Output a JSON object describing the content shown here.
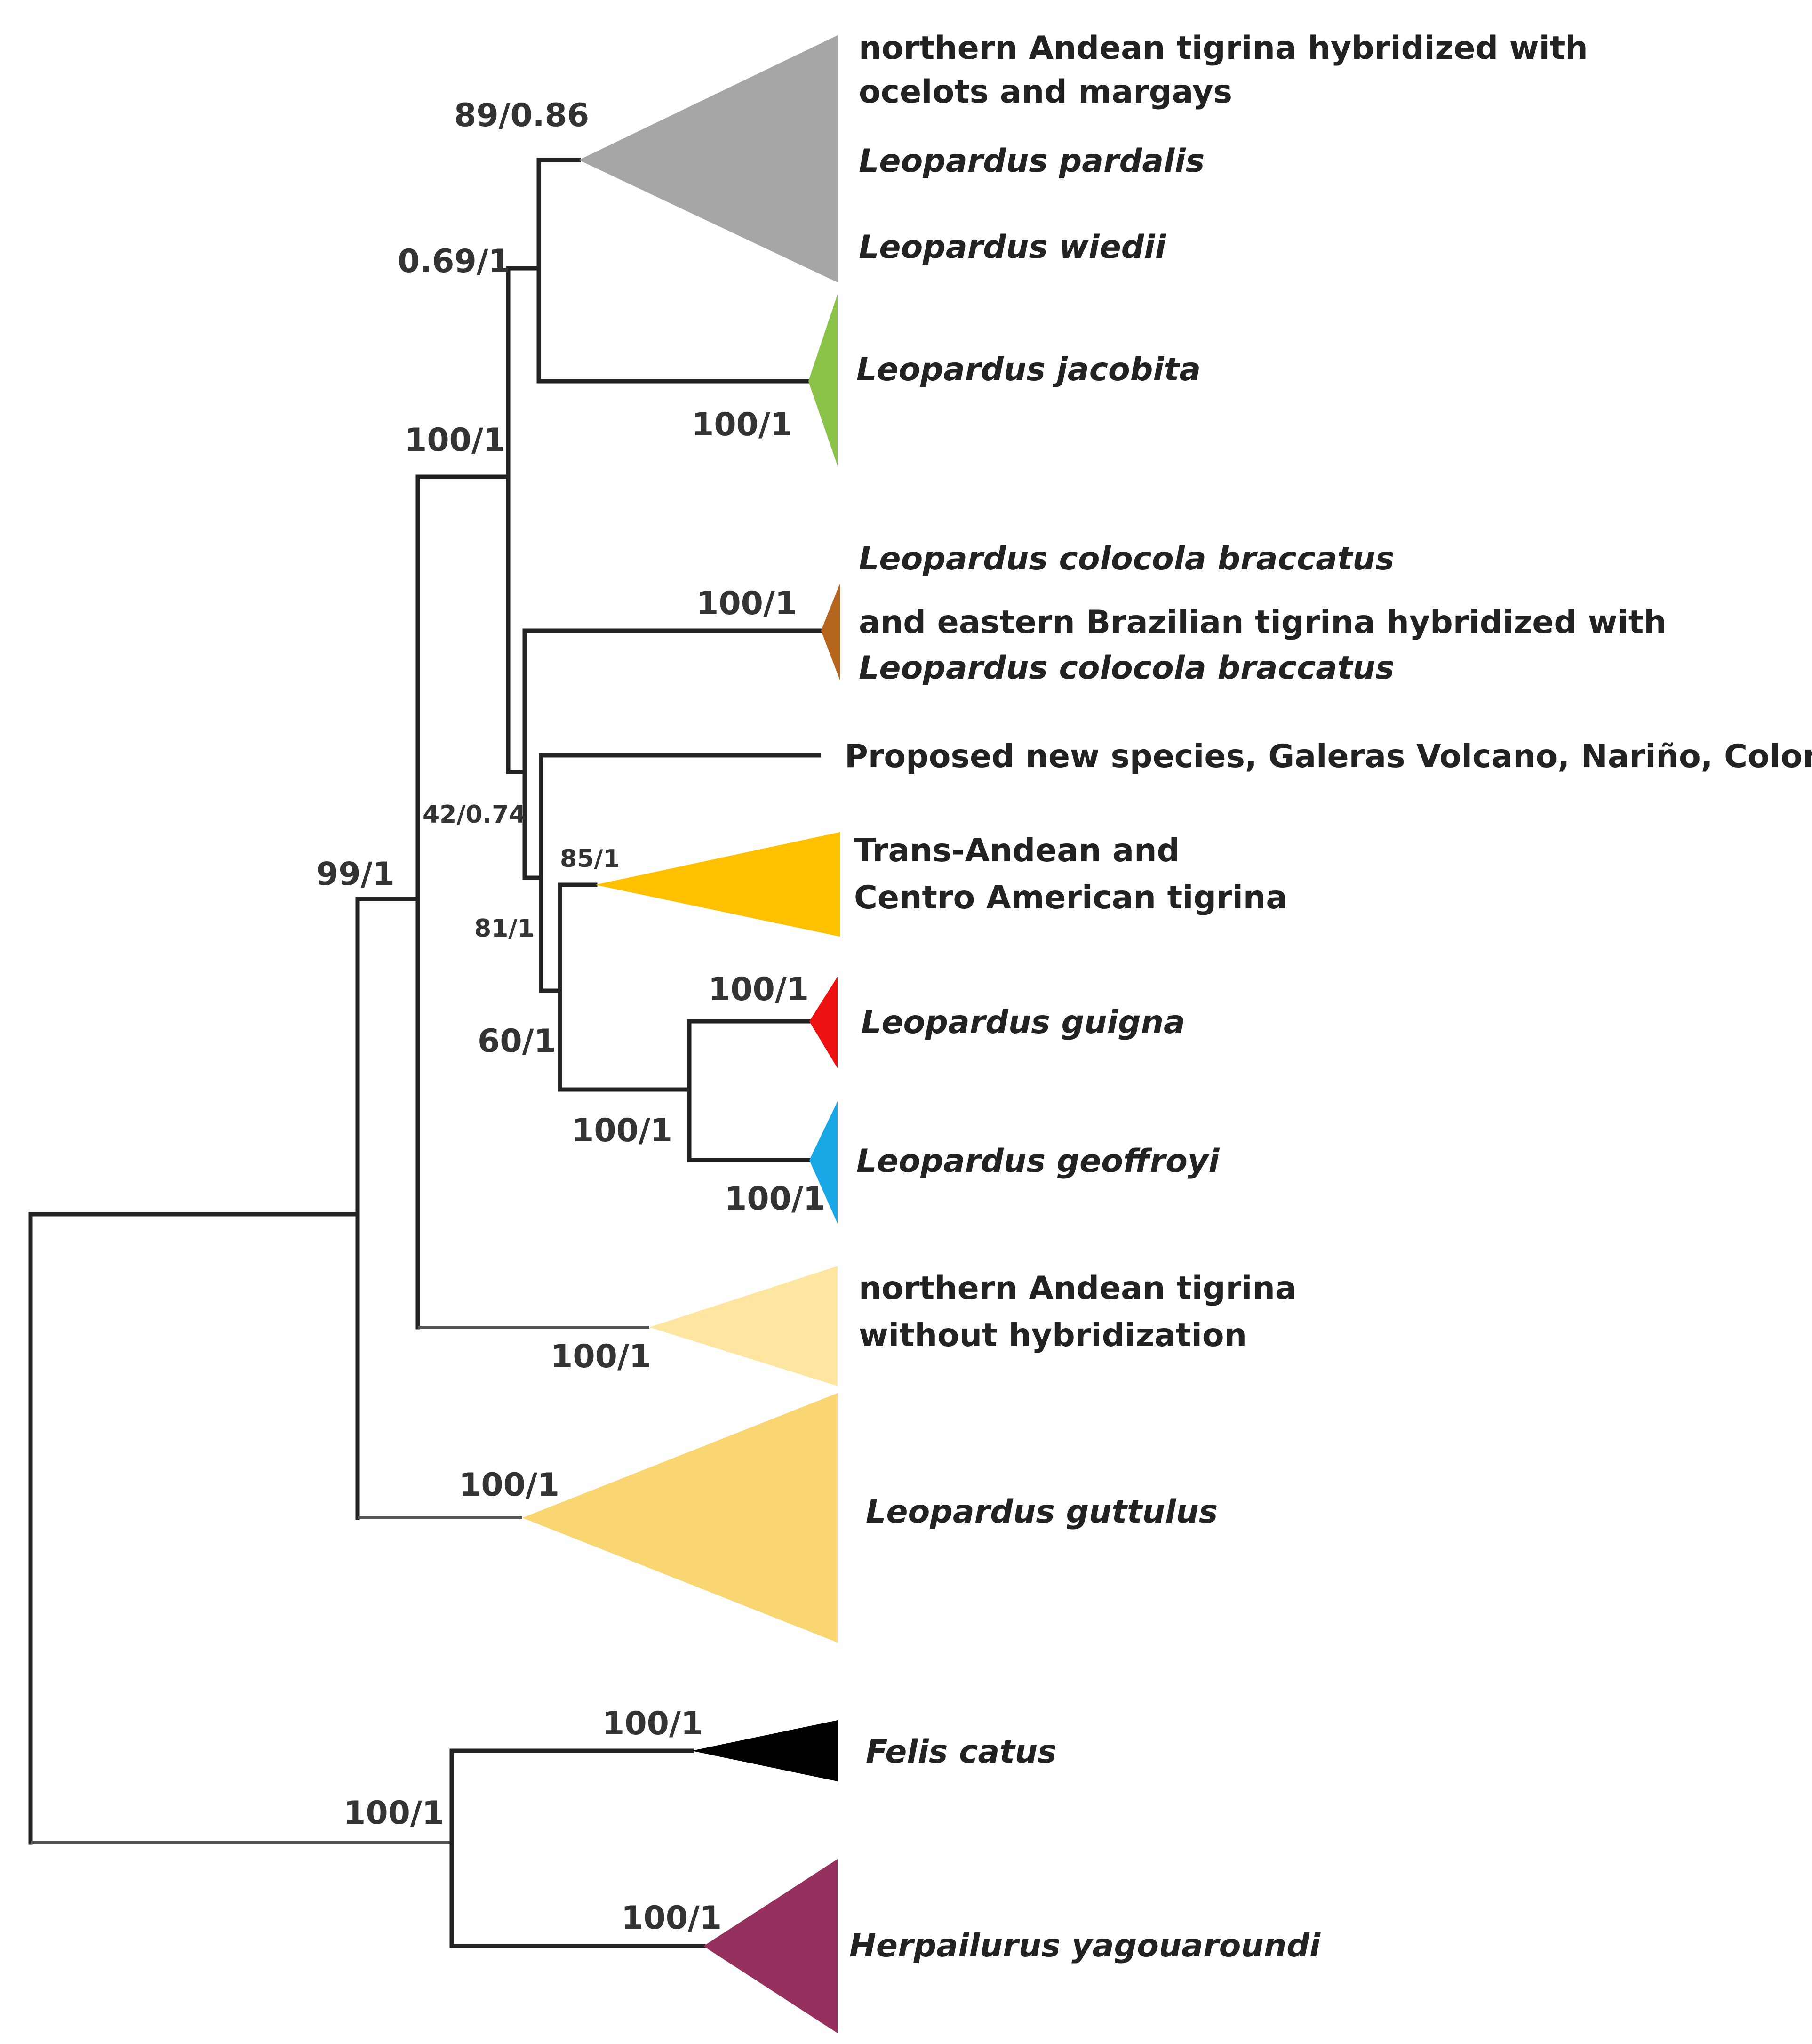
{
  "colors": {
    "pardalis_wiedii": "#a6a6a6",
    "jacobita": "#8bc34a",
    "colocola": "#b5651d",
    "trans_andean": "#ffc000",
    "guigna": "#ee1111",
    "geoffroyi": "#1aa7e6",
    "northern_andean": "#ffe6a0",
    "guttulus": "#fad673",
    "felis": "#000000",
    "herpailurus": "#96305e",
    "branch": "#222222"
  },
  "clades": {
    "pardalis_wiedii": {
      "label_line1": "northern Andean tigrina hybridized with",
      "label_line2": "ocelots and margays",
      "label_line3": "Leopardus pardalis",
      "label_line4": "Leopardus wiedii",
      "support": "89/0.86"
    },
    "jacobita": {
      "label": "Leopardus jacobita",
      "support": "100/1"
    },
    "colocola": {
      "label_line1": "Leopardus colocola braccatus",
      "label_line2": "and eastern Brazilian tigrina hybridized with",
      "label_line3": "Leopardus colocola braccatus",
      "support": "100/1"
    },
    "new_species": {
      "label": "Proposed new species, Galeras Volcano, Nariño, Colombia"
    },
    "trans_andean": {
      "label_line1": "Trans-Andean and",
      "label_line2": "Centro American tigrina",
      "support": "85/1"
    },
    "guigna": {
      "label": "Leopardus guigna",
      "support": "100/1"
    },
    "geoffroyi": {
      "label": "Leopardus geoffroyi",
      "support": "100/1"
    },
    "northern_andean": {
      "label_line1": "northern Andean tigrina",
      "label_line2": "without hybridization",
      "support": "100/1"
    },
    "guttulus": {
      "label": "Leopardus guttulus",
      "support": "100/1"
    },
    "felis": {
      "label": "Felis catus",
      "support": "100/1"
    },
    "herpailurus": {
      "label": "Herpailurus yagouaroundi",
      "support": "100/1"
    }
  },
  "nodes": {
    "pardalis_jacobita": "0.69/1",
    "core_leopardus": "100/1",
    "colocola_group": "42/0.74",
    "trans_andean_group": "81/1",
    "guigna_geoffroyi_group": "60/1",
    "guigna_geoffroyi": "100/1",
    "leopardus_minus_guttulus": "99/1",
    "felis_herpailurus": "100/1"
  }
}
